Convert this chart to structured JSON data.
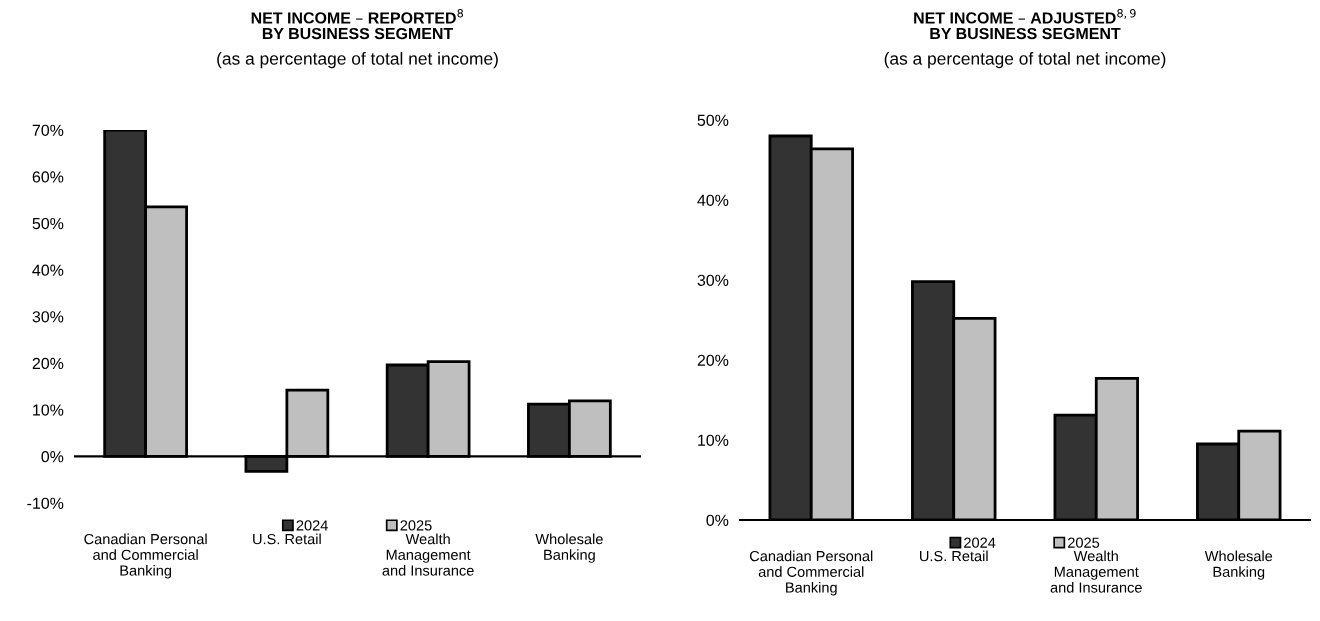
{
  "chart_data": [
    {
      "type": "bar",
      "title": "NET INCOME – REPORTED$^{8}$\nBY BUSINESS SEGMENT",
      "subtitle": "(as a percentage of total net income)",
      "categories": [
        "Canadian Personal\nand Commercial\nBanking",
        "U.S. Retail",
        "Wealth\nManagement\nand Insurance",
        "Wholesale\nBanking"
      ],
      "series": [
        {
          "name": "2024",
          "color": "#333333",
          "values": [
            70,
            -3.2,
            19.6,
            11.2
          ]
        },
        {
          "name": "2025",
          "color": "#bfbfbf",
          "values": [
            53.5,
            14.2,
            20.3,
            11.9
          ]
        }
      ],
      "ylim": [
        -10,
        70
      ],
      "yticks": [
        {
          "value": -10,
          "label": "-10%"
        },
        {
          "value": 0,
          "label": "0%"
        },
        {
          "value": 10,
          "label": "10%"
        },
        {
          "value": 20,
          "label": "20%"
        },
        {
          "value": 30,
          "label": "30%"
        },
        {
          "value": 40,
          "label": "40%"
        },
        {
          "value": 50,
          "label": "50%"
        },
        {
          "value": 60,
          "label": "60%"
        },
        {
          "value": 70,
          "label": "70%"
        }
      ],
      "legend": "bottom"
    },
    {
      "type": "bar",
      "title": "NET INCOME – ADJUSTED$^{8,9}$\nBY BUSINESS SEGMENT",
      "subtitle": "(as a percentage of total net income)",
      "categories": [
        "Canadian Personal\nand Commercial\nBanking",
        "U.S. Retail",
        "Wealth\nManagement\nand Insurance",
        "Wholesale\nBanking"
      ],
      "series": [
        {
          "name": "2024",
          "color": "#333333",
          "values": [
            48.0,
            29.8,
            13.1,
            9.5
          ]
        },
        {
          "name": "2025",
          "color": "#bfbfbf",
          "values": [
            46.4,
            25.2,
            17.7,
            11.1
          ]
        }
      ],
      "ylim": [
        0,
        50
      ],
      "yticks": [
        {
          "value": 0,
          "label": "0%"
        },
        {
          "value": 10,
          "label": "10%"
        },
        {
          "value": 20,
          "label": "20%"
        },
        {
          "value": 30,
          "label": "30%"
        },
        {
          "value": 40,
          "label": "40%"
        },
        {
          "value": 50,
          "label": "50%"
        }
      ],
      "legend": "bottom"
    }
  ]
}
